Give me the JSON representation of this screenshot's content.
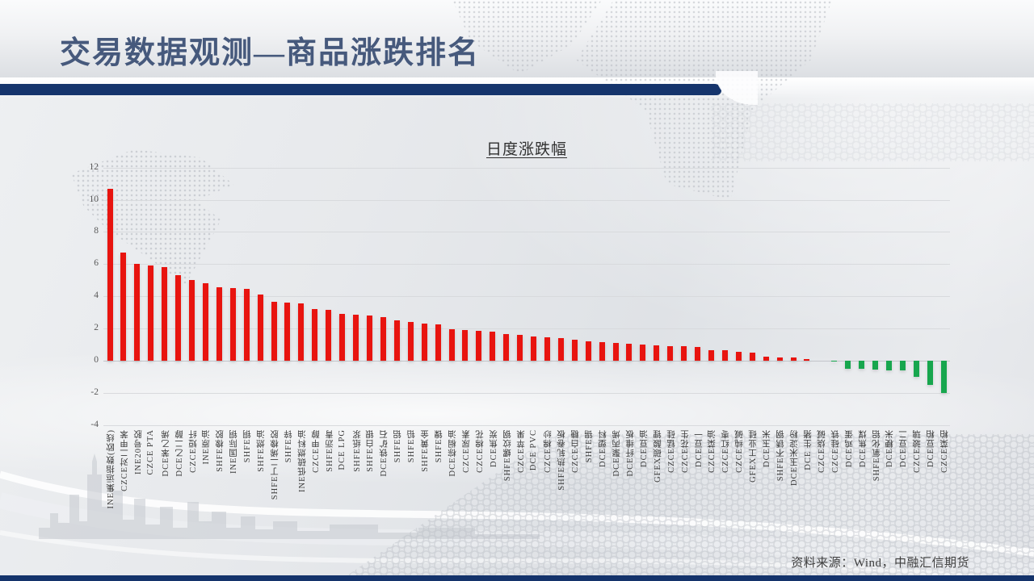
{
  "slide": {
    "title": "交易数据观测—商品涨跌排名",
    "source_note": "资料来源：Wind，中融汇信期货"
  },
  "colors": {
    "accent_navy": "#15346c",
    "title_blue": "#46597c",
    "bar_positive": "#e8140f",
    "bar_negative": "#17a64e",
    "gridline": "#d8dadd",
    "axis_text": "#595959",
    "xlabel_text": "#3c3c3c"
  },
  "chart_data": {
    "type": "bar",
    "title": "日度涨跌幅",
    "xlabel": "",
    "ylabel": "",
    "ylim": [
      -4,
      12
    ],
    "ytick_step": 2,
    "yticks": [
      12,
      10,
      8,
      6,
      4,
      2,
      0,
      -2,
      -4
    ],
    "grid": true,
    "legend": "none",
    "categories": [
      "INE集运指数(欧线)",
      "CZCE对二甲苯",
      "INE20号胶",
      "CZCE PTA",
      "DCE苯乙烯",
      "DCE乙二醇",
      "CZCE短纤",
      "INE原油",
      "SHFE橡胶",
      "INE国际铜",
      "SHFE铜",
      "SHFE燃油",
      "SHFE丁二烯橡胶",
      "SHFE锌",
      "INE低硫燃料油",
      "CZCE甲醇",
      "SHFE沥青",
      "DCE LPG",
      "SHFE纸浆",
      "SHFE白银",
      "DCE铁矿石",
      "SHFE铝",
      "SHFE铅",
      "SHFE黄金",
      "SHFE镍",
      "DCE棕榈油",
      "CZCE尿素",
      "CZCE棉花",
      "DCE焦炭",
      "SHFE螺纹钢",
      "CZCE苹果",
      "DCE PVC",
      "CZCE棉纱",
      "SHFE热轧卷板",
      "CZCE白糖",
      "SHFE锡",
      "DCE塑料",
      "DCE聚丙烯",
      "DCE纤维板",
      "DCE豆油",
      "GFEX碳酸锂",
      "CZCE锰硅",
      "CZCE花生",
      "DCE豆一",
      "CZCE菜油",
      "CZCE红枣",
      "CZCE纯碱",
      "GFEX工业硅",
      "DCE玉米",
      "SHFE不锈钢",
      "DCE玉米淀粉",
      "DCE 生猪",
      "CZCE烧碱",
      "CZCE硅铁",
      "DCE鸡蛋",
      "DCE焦煤",
      "SHFE氧化铝",
      "DCE粳米",
      "DCE豆二",
      "CZCE玻璃",
      "DCE豆粕",
      "CZCE菜粕"
    ],
    "values": [
      10.7,
      6.7,
      6.0,
      5.9,
      5.8,
      5.3,
      5.0,
      4.8,
      4.55,
      4.5,
      4.45,
      4.1,
      3.65,
      3.6,
      3.55,
      3.2,
      3.15,
      2.9,
      2.85,
      2.8,
      2.7,
      2.5,
      2.4,
      2.3,
      2.25,
      1.95,
      1.9,
      1.85,
      1.78,
      1.65,
      1.6,
      1.5,
      1.45,
      1.42,
      1.3,
      1.2,
      1.15,
      1.1,
      1.05,
      1.0,
      0.95,
      0.92,
      0.9,
      0.85,
      0.65,
      0.65,
      0.55,
      0.48,
      0.25,
      0.22,
      0.18,
      0.08,
      0.0,
      -0.06,
      -0.5,
      -0.5,
      -0.55,
      -0.6,
      -0.6,
      -1.0,
      -1.5,
      -2.0
    ]
  }
}
